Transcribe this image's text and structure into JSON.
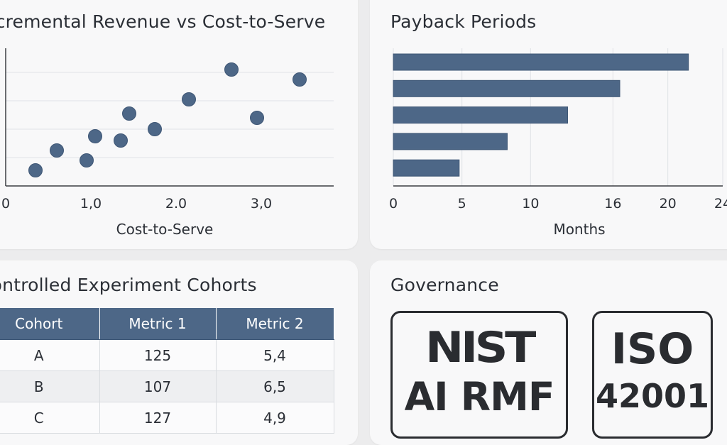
{
  "colors": {
    "accent": "#4d6787",
    "grid": "#dfe2e6",
    "axis": "#3a3d42"
  },
  "scatter_card": {
    "title": "Incremental Revenue vs Cost-to-Serve"
  },
  "bars_card": {
    "title": "Payback Periods"
  },
  "table_card": {
    "title": "Controlled Experiment Cohorts",
    "headers": [
      "Cohort",
      "Metric 1",
      "Metric 2"
    ],
    "rows": [
      [
        "A",
        "125",
        "5,4"
      ],
      [
        "B",
        "107",
        "6,5"
      ],
      [
        "C",
        "127",
        "4,9"
      ]
    ]
  },
  "gov_card": {
    "title": "Governance",
    "badges": [
      {
        "line1": "NIST",
        "line2": "AI RMF"
      },
      {
        "line1": "ISO",
        "line2": "42001"
      }
    ]
  },
  "chart_data": [
    {
      "type": "scatter",
      "title": "Incremental Revenue vs Cost-to-Serve",
      "xlabel": "Cost-to-Serve",
      "ylabel": "",
      "xlim": [
        0,
        3.85
      ],
      "ylim": [
        0,
        100
      ],
      "xticks": [
        {
          "value": 0,
          "label": "0"
        },
        {
          "value": 1,
          "label": "1,0"
        },
        {
          "value": 2,
          "label": "2.0"
        },
        {
          "value": 3,
          "label": "3,0"
        }
      ],
      "ygrid": [
        20,
        40,
        60,
        80
      ],
      "grid": true,
      "points": [
        {
          "x": 0.35,
          "y": 11
        },
        {
          "x": 0.6,
          "y": 25
        },
        {
          "x": 0.95,
          "y": 18
        },
        {
          "x": 1.05,
          "y": 35
        },
        {
          "x": 1.35,
          "y": 32
        },
        {
          "x": 1.45,
          "y": 51
        },
        {
          "x": 1.75,
          "y": 40
        },
        {
          "x": 2.15,
          "y": 61
        },
        {
          "x": 2.65,
          "y": 82
        },
        {
          "x": 2.95,
          "y": 48
        },
        {
          "x": 3.45,
          "y": 75
        }
      ]
    },
    {
      "type": "bar",
      "orientation": "horizontal",
      "title": "Payback Periods",
      "xlabel": "Months",
      "ylabel": "",
      "xlim": [
        0,
        24
      ],
      "xticks": [
        0,
        5,
        10,
        16,
        20,
        24
      ],
      "grid": true,
      "values": [
        21.5,
        16.5,
        12.7,
        8.3,
        4.8
      ]
    }
  ]
}
